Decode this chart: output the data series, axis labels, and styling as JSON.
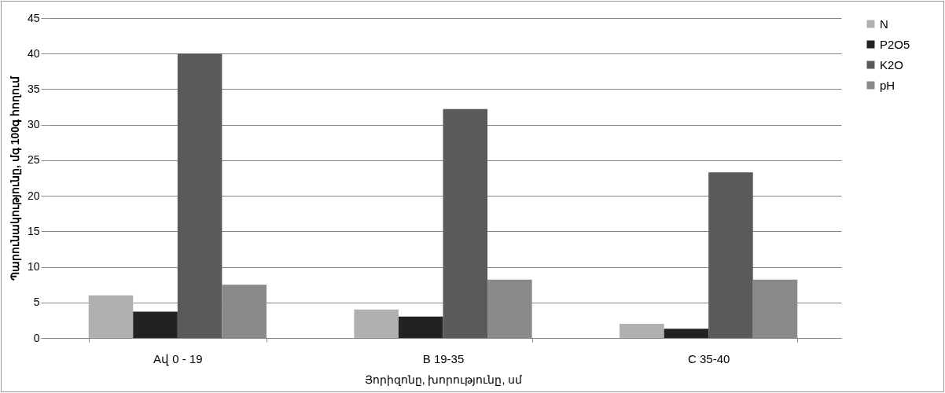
{
  "chart_data": {
    "type": "bar",
    "xlabel": "Յորիզոնը, խորությունը, սմ",
    "ylabel": "Պարունակությունը, մգ 100գ հողում",
    "categories": [
      "Aվ  0 - 19",
      "B   19-35",
      "C 35-40"
    ],
    "series": [
      {
        "name": "N",
        "color": "#b0b0b0",
        "values": [
          6.0,
          4.0,
          2.0
        ]
      },
      {
        "name": "P2O5",
        "color": "#222222",
        "values": [
          3.7,
          3.0,
          1.3
        ]
      },
      {
        "name": "K2O",
        "color": "#5a5a5a",
        "values": [
          40,
          32.2,
          23.3
        ]
      },
      {
        "name": "pH",
        "color": "#8a8a8a",
        "values": [
          7.5,
          8.2,
          8.2
        ]
      }
    ],
    "ylim": [
      0,
      45
    ],
    "yticks": [
      0,
      5,
      10,
      15,
      20,
      25,
      30,
      35,
      40,
      45
    ],
    "grid": "y",
    "legend": "right"
  }
}
